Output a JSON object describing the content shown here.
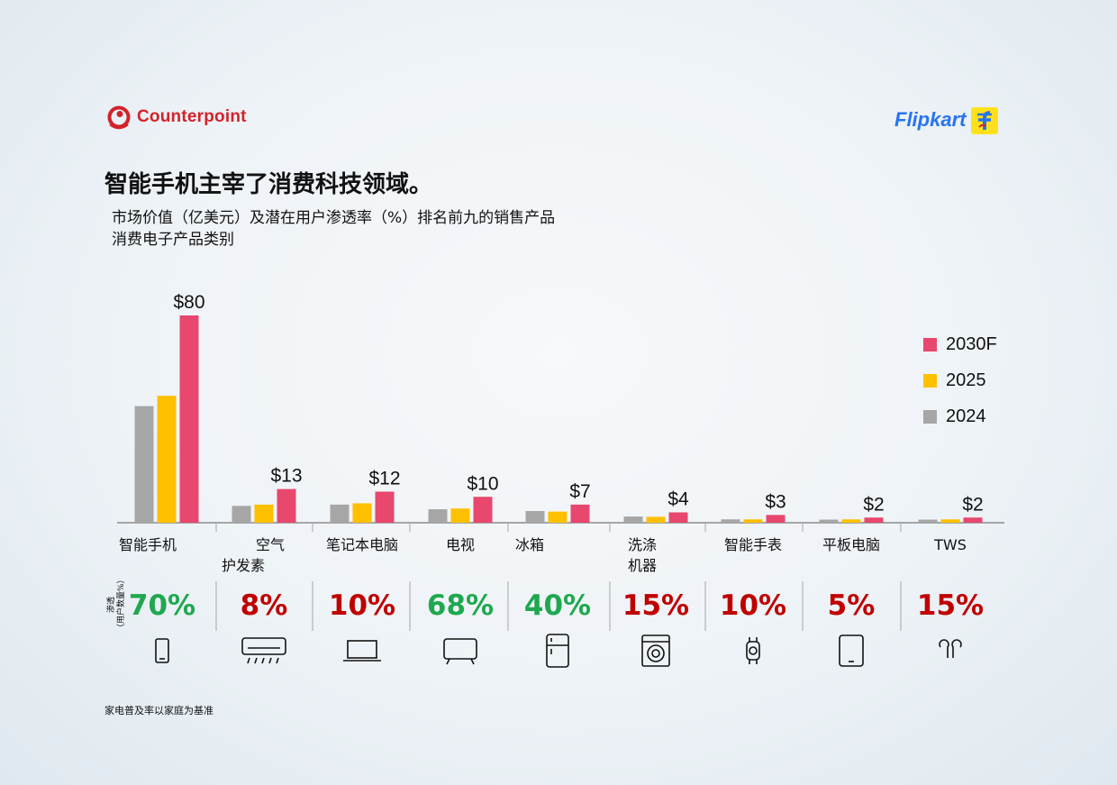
{
  "header": {
    "counterpoint_logo": "Counterpoint",
    "flipkart_logo": "Flipkart",
    "title": "智能手机主宰了消费科技领域。",
    "subtitle_line1": "市场价值（亿美元）及潜在用户渗透率（%）排名前九的销售产品",
    "subtitle_line2": "消费电子产品类别"
  },
  "colors": {
    "2024": "#a6a6a6",
    "2025": "#ffc000",
    "2030F": "#e8476e",
    "green": "#1fa84f",
    "red": "#c00000"
  },
  "chart_data": {
    "type": "bar",
    "categories": [
      "智能手机",
      "空气\n护发素",
      "笔记本电脑",
      "电视",
      "冰箱",
      "洗涤\n机器",
      "智能手表",
      "平板电脑",
      "TWS"
    ],
    "series": [
      {
        "name": "2024",
        "values": [
          45,
          6.5,
          7,
          5.2,
          4.5,
          2.4,
          1.3,
          1.2,
          1.2
        ]
      },
      {
        "name": "2025",
        "values": [
          49,
          7,
          7.5,
          5.5,
          4.3,
          2.3,
          1.3,
          1.3,
          1.3
        ]
      },
      {
        "name": "2030F",
        "values": [
          80,
          13,
          12,
          10,
          7,
          4,
          3,
          2,
          2
        ]
      }
    ],
    "data_labels": [
      "$80",
      "$13",
      "$12",
      "$10",
      "$7",
      "$4",
      "$3",
      "$2",
      "$2"
    ],
    "ylim": [
      0,
      80
    ],
    "legend": [
      "2030F",
      "2025",
      "2024"
    ],
    "legend_position": "right",
    "grid": false
  },
  "penetration": {
    "label": "渗透\n（用户数量%）",
    "values": [
      "70%",
      "8%",
      "10%",
      "68%",
      "40%",
      "15%",
      "10%",
      "5%",
      "15%"
    ],
    "status": [
      "green",
      "red",
      "red",
      "green",
      "green",
      "red",
      "red",
      "red",
      "red"
    ]
  },
  "icons": [
    "smartphone-icon",
    "air-conditioner-icon",
    "laptop-icon",
    "tv-icon",
    "refrigerator-icon",
    "washing-machine-icon",
    "smartwatch-icon",
    "tablet-icon",
    "earbuds-icon"
  ],
  "footnote": "家电普及率以家庭为基准"
}
